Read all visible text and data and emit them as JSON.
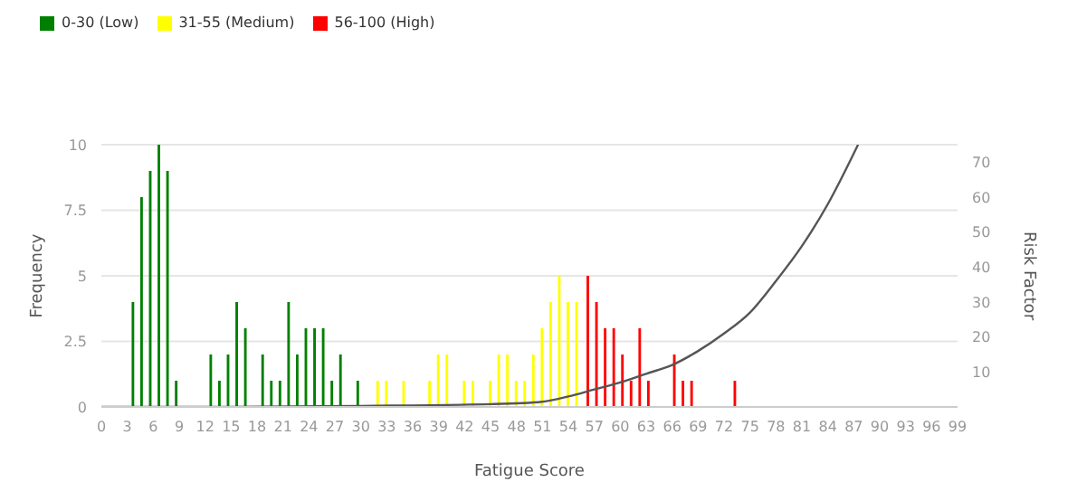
{
  "chart_data": {
    "type": "bar",
    "xlabel": "Fatigue Score",
    "ylabel": "Frequency",
    "y2label": "Risk Factor",
    "xlim": [
      0,
      99
    ],
    "xticks": [
      0,
      3,
      6,
      9,
      12,
      15,
      18,
      21,
      24,
      27,
      30,
      33,
      36,
      39,
      42,
      45,
      48,
      51,
      54,
      57,
      60,
      63,
      66,
      69,
      72,
      75,
      78,
      81,
      84,
      87,
      90,
      93,
      96,
      99
    ],
    "ylim": [
      0,
      10
    ],
    "yticks": [
      0,
      2.5,
      5,
      7.5,
      10
    ],
    "y2lim": [
      0,
      75
    ],
    "y2ticks": [
      10,
      20,
      30,
      40,
      50,
      60,
      70
    ],
    "grid": "y",
    "legend": "top left",
    "series": [
      {
        "name": "0-30 (Low)",
        "color": "#008000",
        "x": [
          4,
          5,
          6,
          7,
          8,
          9,
          13,
          14,
          15,
          16,
          17,
          19,
          20,
          21,
          22,
          23,
          24,
          25,
          26,
          27,
          28,
          30
        ],
        "values": [
          4,
          8,
          9,
          10,
          9,
          1,
          2,
          1,
          2,
          4,
          3,
          2,
          1,
          1,
          4,
          2,
          3,
          3,
          3,
          1,
          2,
          1
        ]
      },
      {
        "name": "31-55 (Medium)",
        "color": "#ffff00",
        "x": [
          32,
          33,
          35,
          38,
          39,
          40,
          42,
          43,
          45,
          46,
          47,
          48,
          49,
          50,
          51,
          52,
          53,
          54,
          55
        ],
        "values": [
          1,
          1,
          1,
          1,
          2,
          2,
          1,
          1,
          1,
          2,
          2,
          1,
          1,
          2,
          3,
          4,
          5,
          4,
          4
        ]
      },
      {
        "name": "56-100 (High)",
        "color": "#ff0000",
        "x": [
          56,
          57,
          58,
          59,
          60,
          61,
          62,
          63,
          66,
          67,
          68,
          73
        ],
        "values": [
          5,
          4,
          3,
          3,
          2,
          1,
          3,
          1,
          2,
          1,
          1,
          1
        ]
      },
      {
        "type": "line",
        "axis": "y2",
        "color": "#555555",
        "x": [
          0,
          12,
          30,
          45,
          51,
          54,
          57,
          60,
          63,
          66,
          69,
          72,
          75,
          78,
          81,
          84,
          87.5
        ],
        "values": [
          0,
          0,
          0.3,
          0.8,
          1.5,
          3,
          5,
          7,
          9.5,
          12,
          16,
          21,
          27,
          36,
          46,
          58,
          75
        ]
      }
    ]
  }
}
